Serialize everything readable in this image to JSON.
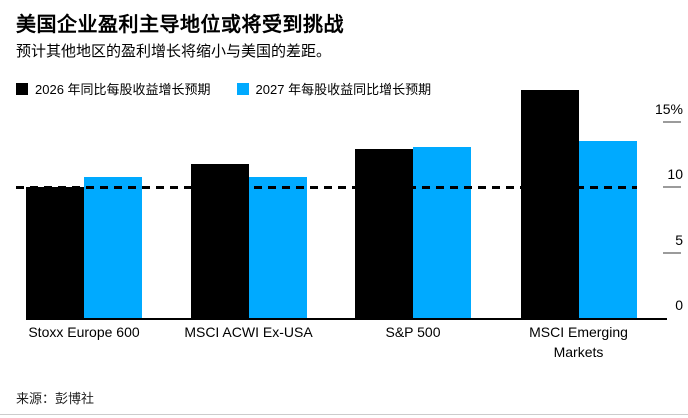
{
  "header": {
    "title": "美国企业盈利主导地位或将受到挑战",
    "subtitle": "预计其他地区的盈利增长将缩小与美国的差距。"
  },
  "legend": [
    {
      "label": "2026 年同比每股收益增长预期",
      "color": "#000000"
    },
    {
      "label": "2027 年每股收益同比增长预期",
      "color": "#00aaff"
    }
  ],
  "footer": {
    "source": "来源：彭博社"
  },
  "chart_data": {
    "type": "bar",
    "categories": [
      "Stoxx Europe 600",
      "MSCI ACWI Ex-USA",
      "S&P 500",
      "MSCI Emerging\nMarkets"
    ],
    "series": [
      {
        "name": "2026 年同比每股收益增长预期",
        "color": "#000000",
        "values": [
          10.0,
          11.8,
          12.9,
          17.4
        ]
      },
      {
        "name": "2027 年每股收益同比增长预期",
        "color": "#00aaff",
        "values": [
          10.8,
          10.8,
          13.1,
          13.5
        ]
      }
    ],
    "ylabel": "",
    "xlabel": "",
    "yticks": [
      0,
      5,
      10,
      15
    ],
    "ytick_labels": [
      "0",
      "5",
      "10",
      "15%"
    ],
    "ylim": [
      0,
      18
    ],
    "reference_line": 10,
    "grid": false,
    "axis_side": "right",
    "legend_position": "top"
  }
}
